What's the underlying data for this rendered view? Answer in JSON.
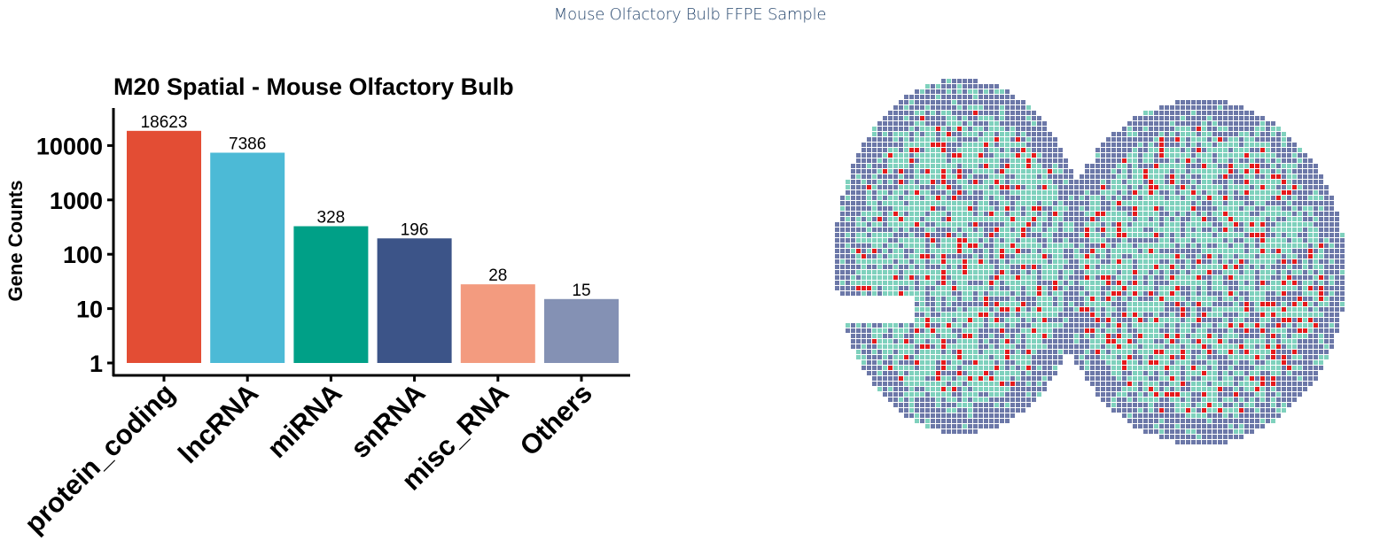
{
  "page": {
    "title": "Mouse Olfactory Bulb FFPE Sample"
  },
  "chart_data": [
    {
      "type": "bar",
      "title": "M20 Spatial - Mouse Olfactory Bulb",
      "xlabel": "",
      "ylabel": "Gene Counts",
      "y_scale": "log10",
      "ylim": [
        1,
        20000
      ],
      "y_ticks": [
        1,
        10,
        100,
        1000,
        10000
      ],
      "y_tick_labels": [
        "1",
        "10",
        "100",
        "1000",
        "10000"
      ],
      "grid": false,
      "legend": "none",
      "categories": [
        "protein_coding",
        "lncRNA",
        "miRNA",
        "snRNA",
        "misc_RNA",
        "Others"
      ],
      "values": [
        18623,
        7386,
        328,
        196,
        28,
        15
      ],
      "data_labels": [
        "18623",
        "7386",
        "328",
        "196",
        "28",
        "15"
      ],
      "colors": [
        "#e34d34",
        "#4cbad6",
        "#00a087",
        "#3c5488",
        "#f39b7f",
        "#8491b4"
      ]
    },
    {
      "type": "heatmap",
      "title": "",
      "description_colors": {
        "spot_color_a": "#6c78a8",
        "spot_color_b": "#7fd1bd",
        "spot_color_c": "#e41a1c"
      },
      "legend": "none"
    }
  ]
}
